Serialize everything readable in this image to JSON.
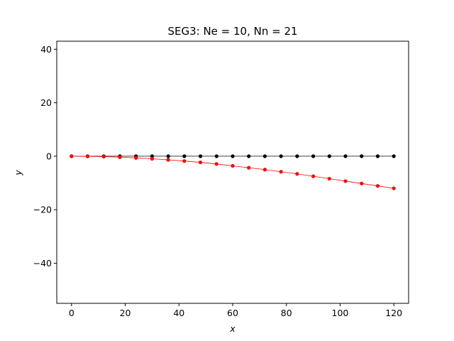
{
  "chart_data": {
    "type": "line",
    "title": "SEG3: Ne = 10, Nn = 21",
    "xlabel": "x",
    "ylabel": "y",
    "xlim": [
      -5.5,
      125.5
    ],
    "ylim": [
      -55,
      43
    ],
    "xticks": [
      0,
      20,
      40,
      60,
      80,
      100,
      120
    ],
    "xtick_labels": [
      "0",
      "20",
      "40",
      "60",
      "80",
      "100",
      "120"
    ],
    "yticks": [
      -40,
      -20,
      0,
      20,
      40
    ],
    "ytick_labels": [
      "−40",
      "−20",
      "0",
      "20",
      "40"
    ],
    "grid": false,
    "legend": "none",
    "x": [
      0,
      6,
      12,
      18,
      24,
      30,
      36,
      42,
      48,
      54,
      60,
      66,
      72,
      78,
      84,
      90,
      96,
      102,
      108,
      114,
      120
    ],
    "series": [
      {
        "color": "#000000",
        "marker": "circle",
        "values": [
          0,
          0,
          0,
          0,
          0,
          0,
          0,
          0,
          0,
          0,
          0,
          0,
          0,
          0,
          0,
          0,
          0,
          0,
          0,
          0,
          0
        ]
      },
      {
        "color": "#ff0000",
        "marker": "circle",
        "values": [
          0,
          -0.05,
          -0.15,
          -0.35,
          -0.62,
          -0.95,
          -1.35,
          -1.8,
          -2.3,
          -2.9,
          -3.6,
          -4.3,
          -5.0,
          -5.8,
          -6.6,
          -7.5,
          -8.4,
          -9.3,
          -10.2,
          -11.1,
          -12.0
        ]
      }
    ]
  }
}
